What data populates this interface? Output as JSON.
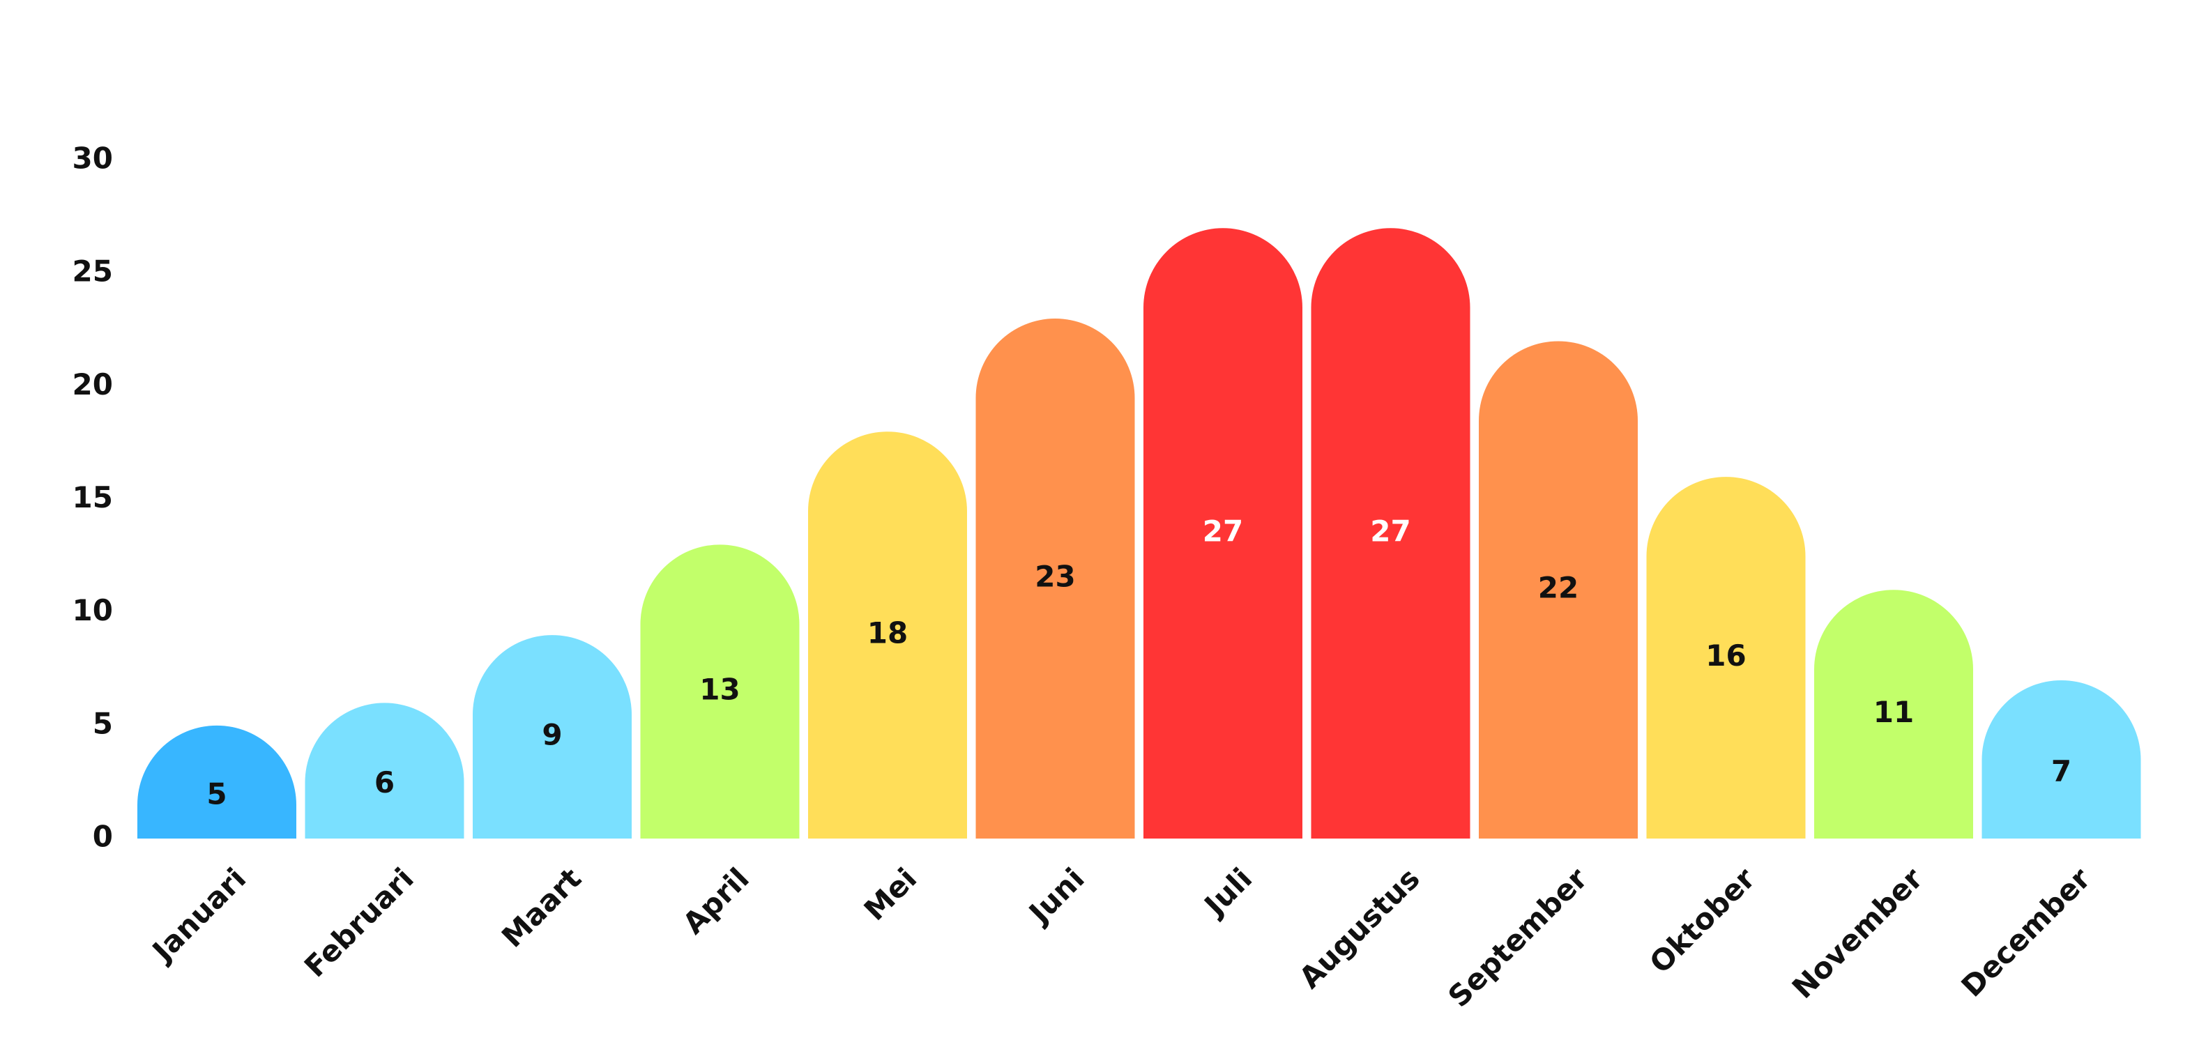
{
  "chart_data": {
    "type": "bar",
    "title": "",
    "xlabel": "",
    "ylabel": "",
    "categories": [
      "Januari",
      "Februari",
      "Maart",
      "April",
      "Mei",
      "Juni",
      "Juli",
      "Augustus",
      "September",
      "Oktober",
      "November",
      "December"
    ],
    "values": [
      5,
      6,
      9,
      13,
      18,
      23,
      27,
      27,
      22,
      16,
      11,
      7
    ],
    "ylim": [
      0,
      30
    ],
    "yticks": [
      "0",
      "5",
      "10",
      "15",
      "20",
      "25",
      "30"
    ],
    "grid": false,
    "legend": "none",
    "bar_colors": [
      "#38B6FF",
      "#7AE0FF",
      "#7AE0FF",
      "#C2FF6A",
      "#FFDE59",
      "#FF914D",
      "#FF3535",
      "#FF3535",
      "#FF914D",
      "#FFDE59",
      "#C2FF6A",
      "#7AE0FF"
    ],
    "label_colors": [
      "#111111",
      "#111111",
      "#111111",
      "#111111",
      "#111111",
      "#111111",
      "#FFFFFF",
      "#FFFFFF",
      "#111111",
      "#111111",
      "#111111",
      "#111111"
    ]
  }
}
